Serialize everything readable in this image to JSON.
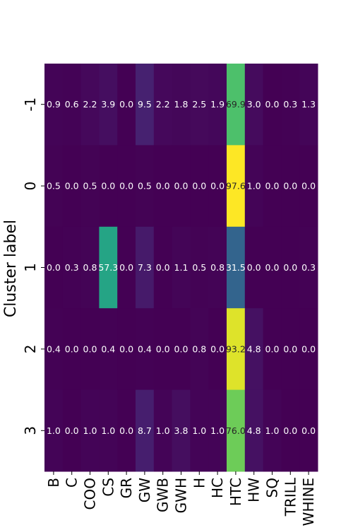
{
  "chart_data": {
    "type": "heatmap",
    "title": "",
    "xlabel": "",
    "ylabel": "Cluster label",
    "x_categories": [
      "B",
      "C",
      "COO",
      "CS",
      "GR",
      "GW",
      "GWB",
      "GWH",
      "H",
      "HC",
      "HTC",
      "HW",
      "SQ",
      "TRILL",
      "WHINE"
    ],
    "y_categories": [
      "-1",
      "0",
      "1",
      "2",
      "3"
    ],
    "values": [
      [
        0.9,
        0.6,
        2.2,
        3.9,
        0.0,
        9.5,
        2.2,
        1.8,
        2.5,
        1.9,
        69.9,
        3.0,
        0.0,
        0.3,
        1.3
      ],
      [
        0.5,
        0.0,
        0.5,
        0.0,
        0.0,
        0.5,
        0.0,
        0.0,
        0.0,
        0.0,
        97.6,
        1.0,
        0.0,
        0.0,
        0.0
      ],
      [
        0.0,
        0.3,
        0.8,
        57.3,
        0.0,
        7.3,
        0.0,
        1.1,
        0.5,
        0.8,
        31.5,
        0.0,
        0.0,
        0.0,
        0.3
      ],
      [
        0.4,
        0.0,
        0.0,
        0.4,
        0.0,
        0.4,
        0.0,
        0.0,
        0.8,
        0.0,
        93.2,
        4.8,
        0.0,
        0.0,
        0.0
      ],
      [
        1.0,
        0.0,
        1.0,
        1.0,
        0.0,
        8.7,
        1.0,
        3.8,
        1.0,
        1.0,
        76.0,
        4.8,
        1.0,
        0.0,
        0.0
      ]
    ],
    "cell_labels": [
      [
        "0.9",
        "0.6",
        "2.2",
        "3.9",
        "0.0",
        "9.5",
        "2.2",
        "1.8",
        "2.5",
        "1.9",
        "69.9",
        "3.0",
        "0.0",
        "0.3",
        "1.3"
      ],
      [
        "0.5",
        "0.0",
        "0.5",
        "0.0",
        "0.0",
        "0.5",
        "0.0",
        "0.0",
        "0.0",
        "0.0",
        "97.6",
        "1.0",
        "0.0",
        "0.0",
        "0.0"
      ],
      [
        "0.0",
        "0.3",
        "0.8",
        "57.3",
        "0.0",
        "7.3",
        "0.0",
        "1.1",
        "0.5",
        "0.8",
        "31.5",
        "0.0",
        "0.0",
        "0.0",
        "0.3"
      ],
      [
        "0.4",
        "0.0",
        "0.0",
        "0.4",
        "0.0",
        "0.4",
        "0.0",
        "0.0",
        "0.8",
        "0.0",
        "93.2",
        "4.8",
        "0.0",
        "0.0",
        "0.0"
      ],
      [
        "1.0",
        "0.0",
        "1.0",
        "1.0",
        "0.0",
        "8.7",
        "1.0",
        "3.8",
        "1.0",
        "1.0",
        "76.0",
        "4.8",
        "1.0",
        "0.0",
        "0.0"
      ]
    ],
    "value_range": [
      0,
      97.6
    ],
    "colormap": "viridis",
    "colorbar": false,
    "grid": false
  }
}
